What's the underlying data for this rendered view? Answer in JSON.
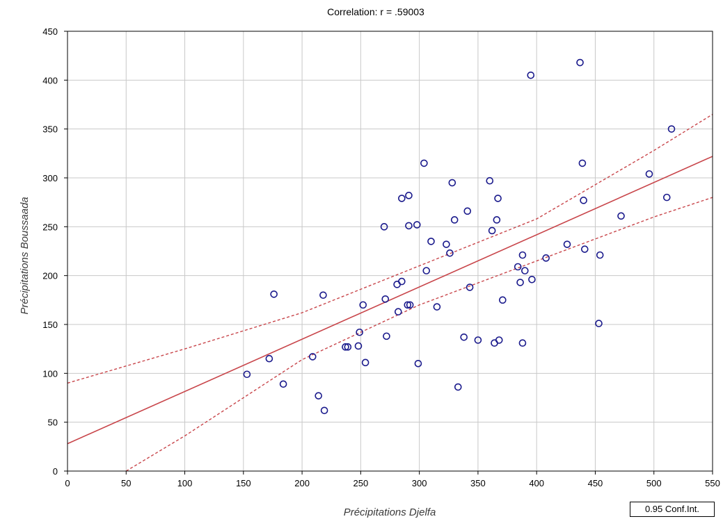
{
  "chart_data": {
    "type": "scatter",
    "title": "Correlation: r = .59003",
    "xlabel": "Précipitations Djelfa",
    "ylabel": "Précipitations Boussaada",
    "xlim": [
      0,
      550
    ],
    "ylim": [
      0,
      450
    ],
    "x_ticks": [
      0,
      50,
      100,
      150,
      200,
      250,
      300,
      350,
      400,
      450,
      500,
      550
    ],
    "y_ticks": [
      0,
      50,
      100,
      150,
      200,
      250,
      300,
      350,
      400,
      450
    ],
    "grid": true,
    "legend": "0.95 Conf.Int.",
    "legend_position": "bottom-right",
    "colors": {
      "points": "#1a1a8c",
      "regression_line": "#c8454a",
      "confidence_band": "#c8454a",
      "grid": "#c8c8c8"
    },
    "regression_line": {
      "x": [
        0,
        550
      ],
      "y": [
        28,
        322
      ]
    },
    "confidence_band": {
      "upper": {
        "x": [
          0,
          100,
          200,
          300,
          400,
          500,
          550
        ],
        "y": [
          90,
          125,
          162,
          210,
          258,
          328,
          365
        ]
      },
      "lower": {
        "x": [
          50,
          100,
          200,
          300,
          400,
          500,
          550
        ],
        "y": [
          0,
          36,
          114,
          170,
          215,
          260,
          280
        ]
      }
    },
    "points": [
      {
        "x": 153,
        "y": 99
      },
      {
        "x": 172,
        "y": 115
      },
      {
        "x": 176,
        "y": 181
      },
      {
        "x": 184,
        "y": 89
      },
      {
        "x": 209,
        "y": 117
      },
      {
        "x": 214,
        "y": 77
      },
      {
        "x": 218,
        "y": 180
      },
      {
        "x": 219,
        "y": 62
      },
      {
        "x": 237,
        "y": 127
      },
      {
        "x": 239,
        "y": 127
      },
      {
        "x": 248,
        "y": 128
      },
      {
        "x": 249,
        "y": 142
      },
      {
        "x": 252,
        "y": 170
      },
      {
        "x": 254,
        "y": 111
      },
      {
        "x": 270,
        "y": 250
      },
      {
        "x": 271,
        "y": 176
      },
      {
        "x": 272,
        "y": 138
      },
      {
        "x": 281,
        "y": 191
      },
      {
        "x": 282,
        "y": 163
      },
      {
        "x": 285,
        "y": 194
      },
      {
        "x": 285,
        "y": 279
      },
      {
        "x": 290,
        "y": 170
      },
      {
        "x": 291,
        "y": 251
      },
      {
        "x": 291,
        "y": 282
      },
      {
        "x": 292,
        "y": 170
      },
      {
        "x": 298,
        "y": 252
      },
      {
        "x": 299,
        "y": 110
      },
      {
        "x": 304,
        "y": 315
      },
      {
        "x": 306,
        "y": 205
      },
      {
        "x": 310,
        "y": 235
      },
      {
        "x": 315,
        "y": 168
      },
      {
        "x": 323,
        "y": 232
      },
      {
        "x": 326,
        "y": 223
      },
      {
        "x": 328,
        "y": 295
      },
      {
        "x": 330,
        "y": 257
      },
      {
        "x": 333,
        "y": 86
      },
      {
        "x": 338,
        "y": 137
      },
      {
        "x": 341,
        "y": 266
      },
      {
        "x": 343,
        "y": 188
      },
      {
        "x": 350,
        "y": 134
      },
      {
        "x": 360,
        "y": 297
      },
      {
        "x": 362,
        "y": 246
      },
      {
        "x": 364,
        "y": 131
      },
      {
        "x": 366,
        "y": 257
      },
      {
        "x": 367,
        "y": 279
      },
      {
        "x": 368,
        "y": 134
      },
      {
        "x": 371,
        "y": 175
      },
      {
        "x": 384,
        "y": 209
      },
      {
        "x": 386,
        "y": 193
      },
      {
        "x": 388,
        "y": 221
      },
      {
        "x": 388,
        "y": 131
      },
      {
        "x": 390,
        "y": 205
      },
      {
        "x": 395,
        "y": 405
      },
      {
        "x": 396,
        "y": 196
      },
      {
        "x": 408,
        "y": 218
      },
      {
        "x": 426,
        "y": 232
      },
      {
        "x": 437,
        "y": 418
      },
      {
        "x": 439,
        "y": 315
      },
      {
        "x": 440,
        "y": 277
      },
      {
        "x": 441,
        "y": 227
      },
      {
        "x": 453,
        "y": 151
      },
      {
        "x": 454,
        "y": 221
      },
      {
        "x": 472,
        "y": 261
      },
      {
        "x": 496,
        "y": 304
      },
      {
        "x": 511,
        "y": 280
      },
      {
        "x": 515,
        "y": 350
      }
    ]
  }
}
